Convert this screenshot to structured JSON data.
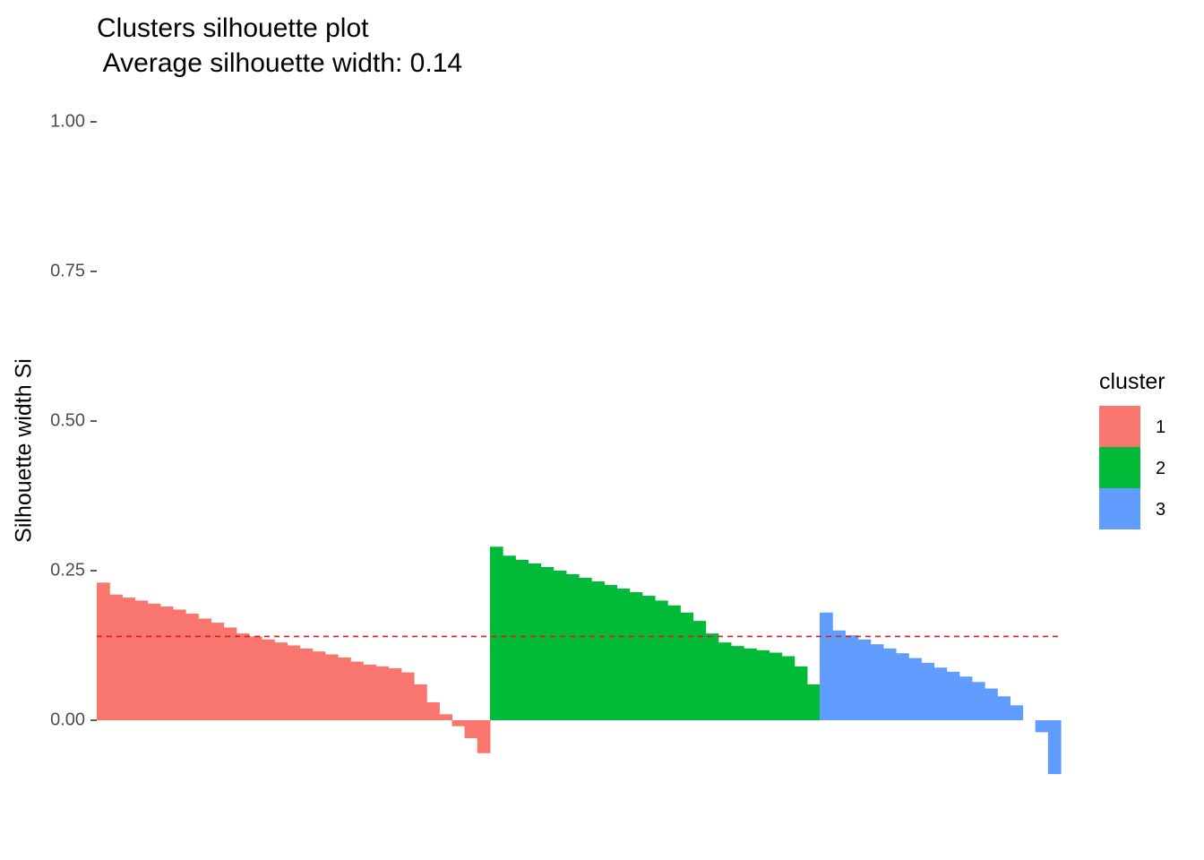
{
  "title": "Clusters silhouette plot\n Average silhouette width: 0.14",
  "chart_data": {
    "type": "bar",
    "ylabel": "Silhouette width Si",
    "ylim": [
      -0.1,
      1.0
    ],
    "yticks": [
      "0.00",
      "0.25",
      "0.50",
      "0.75",
      "1.00"
    ],
    "average_silhouette_width": 0.14,
    "average_line_color": "#E41A1C",
    "legend": {
      "title": "cluster",
      "position": "right"
    },
    "grid": false,
    "series": [
      {
        "name": "1",
        "color": "#F8766D",
        "values": [
          0.23,
          0.21,
          0.205,
          0.2,
          0.195,
          0.19,
          0.185,
          0.178,
          0.17,
          0.163,
          0.155,
          0.145,
          0.14,
          0.135,
          0.13,
          0.125,
          0.12,
          0.115,
          0.11,
          0.105,
          0.098,
          0.093,
          0.09,
          0.087,
          0.08,
          0.06,
          0.03,
          0.01,
          -0.01,
          -0.03,
          -0.055
        ]
      },
      {
        "name": "2",
        "color": "#00BA38",
        "values": [
          0.29,
          0.275,
          0.268,
          0.262,
          0.256,
          0.25,
          0.244,
          0.238,
          0.232,
          0.226,
          0.22,
          0.214,
          0.208,
          0.2,
          0.192,
          0.18,
          0.166,
          0.145,
          0.13,
          0.124,
          0.12,
          0.117,
          0.113,
          0.107,
          0.09,
          0.06
        ]
      },
      {
        "name": "3",
        "color": "#619CFF",
        "values": [
          0.18,
          0.15,
          0.142,
          0.135,
          0.127,
          0.12,
          0.112,
          0.104,
          0.096,
          0.088,
          0.081,
          0.073,
          0.064,
          0.053,
          0.04,
          0.025,
          0.0,
          -0.02,
          -0.09
        ]
      }
    ]
  }
}
